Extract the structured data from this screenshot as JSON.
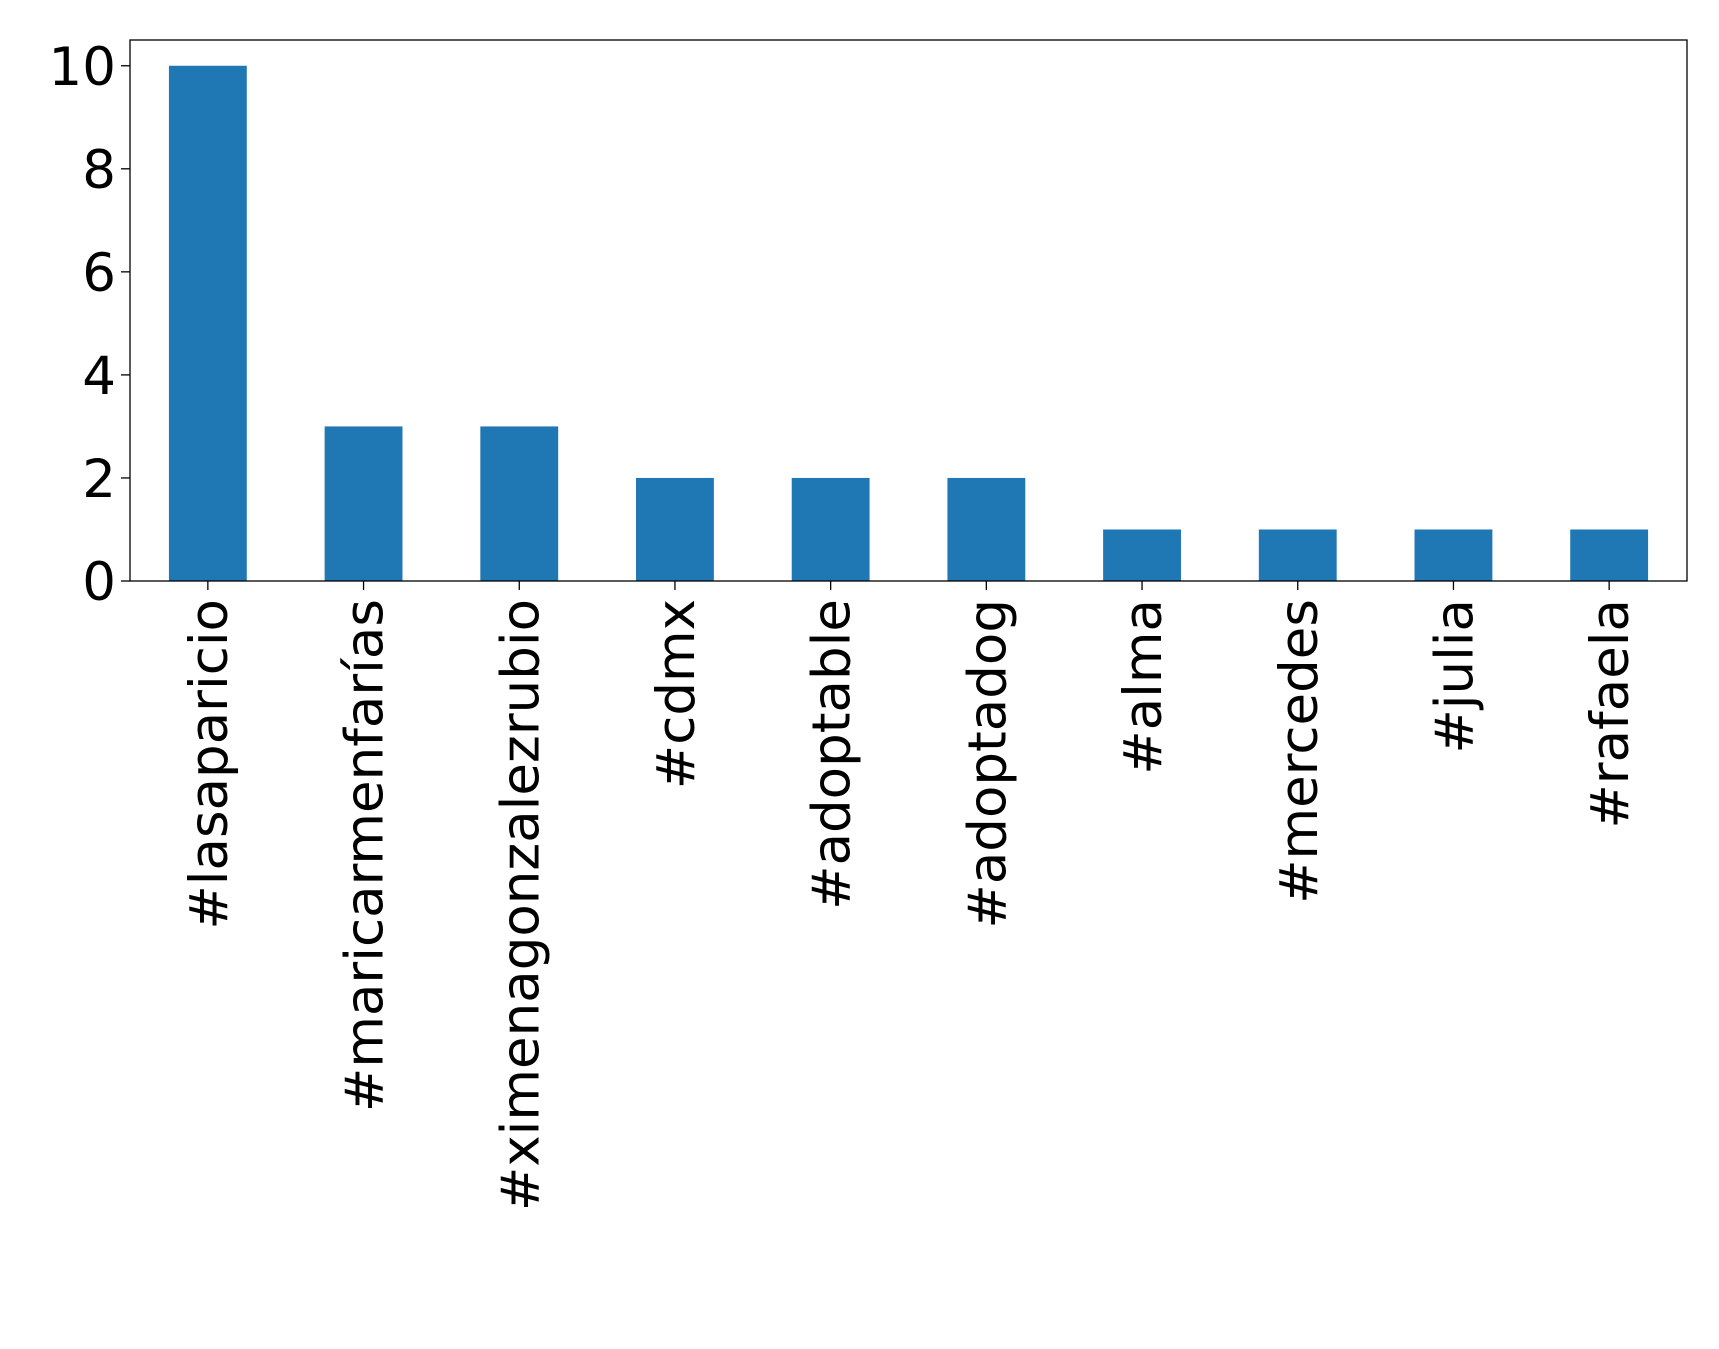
{
  "chart_data": {
    "type": "bar",
    "categories": [
      "#lasaparicio",
      "#maricarmenfarías",
      "#ximenagonzalezrubio",
      "#cdmx",
      "#adoptable",
      "#adoptadog",
      "#alma",
      "#mercedes",
      "#julia",
      "#rafaela"
    ],
    "values": [
      10,
      3,
      3,
      2,
      2,
      2,
      1,
      1,
      1,
      1
    ],
    "color": "#1f77b4",
    "ylim": [
      0,
      10.5
    ],
    "yticks": [
      0,
      2,
      4,
      6,
      8,
      10
    ],
    "grid": false
  }
}
